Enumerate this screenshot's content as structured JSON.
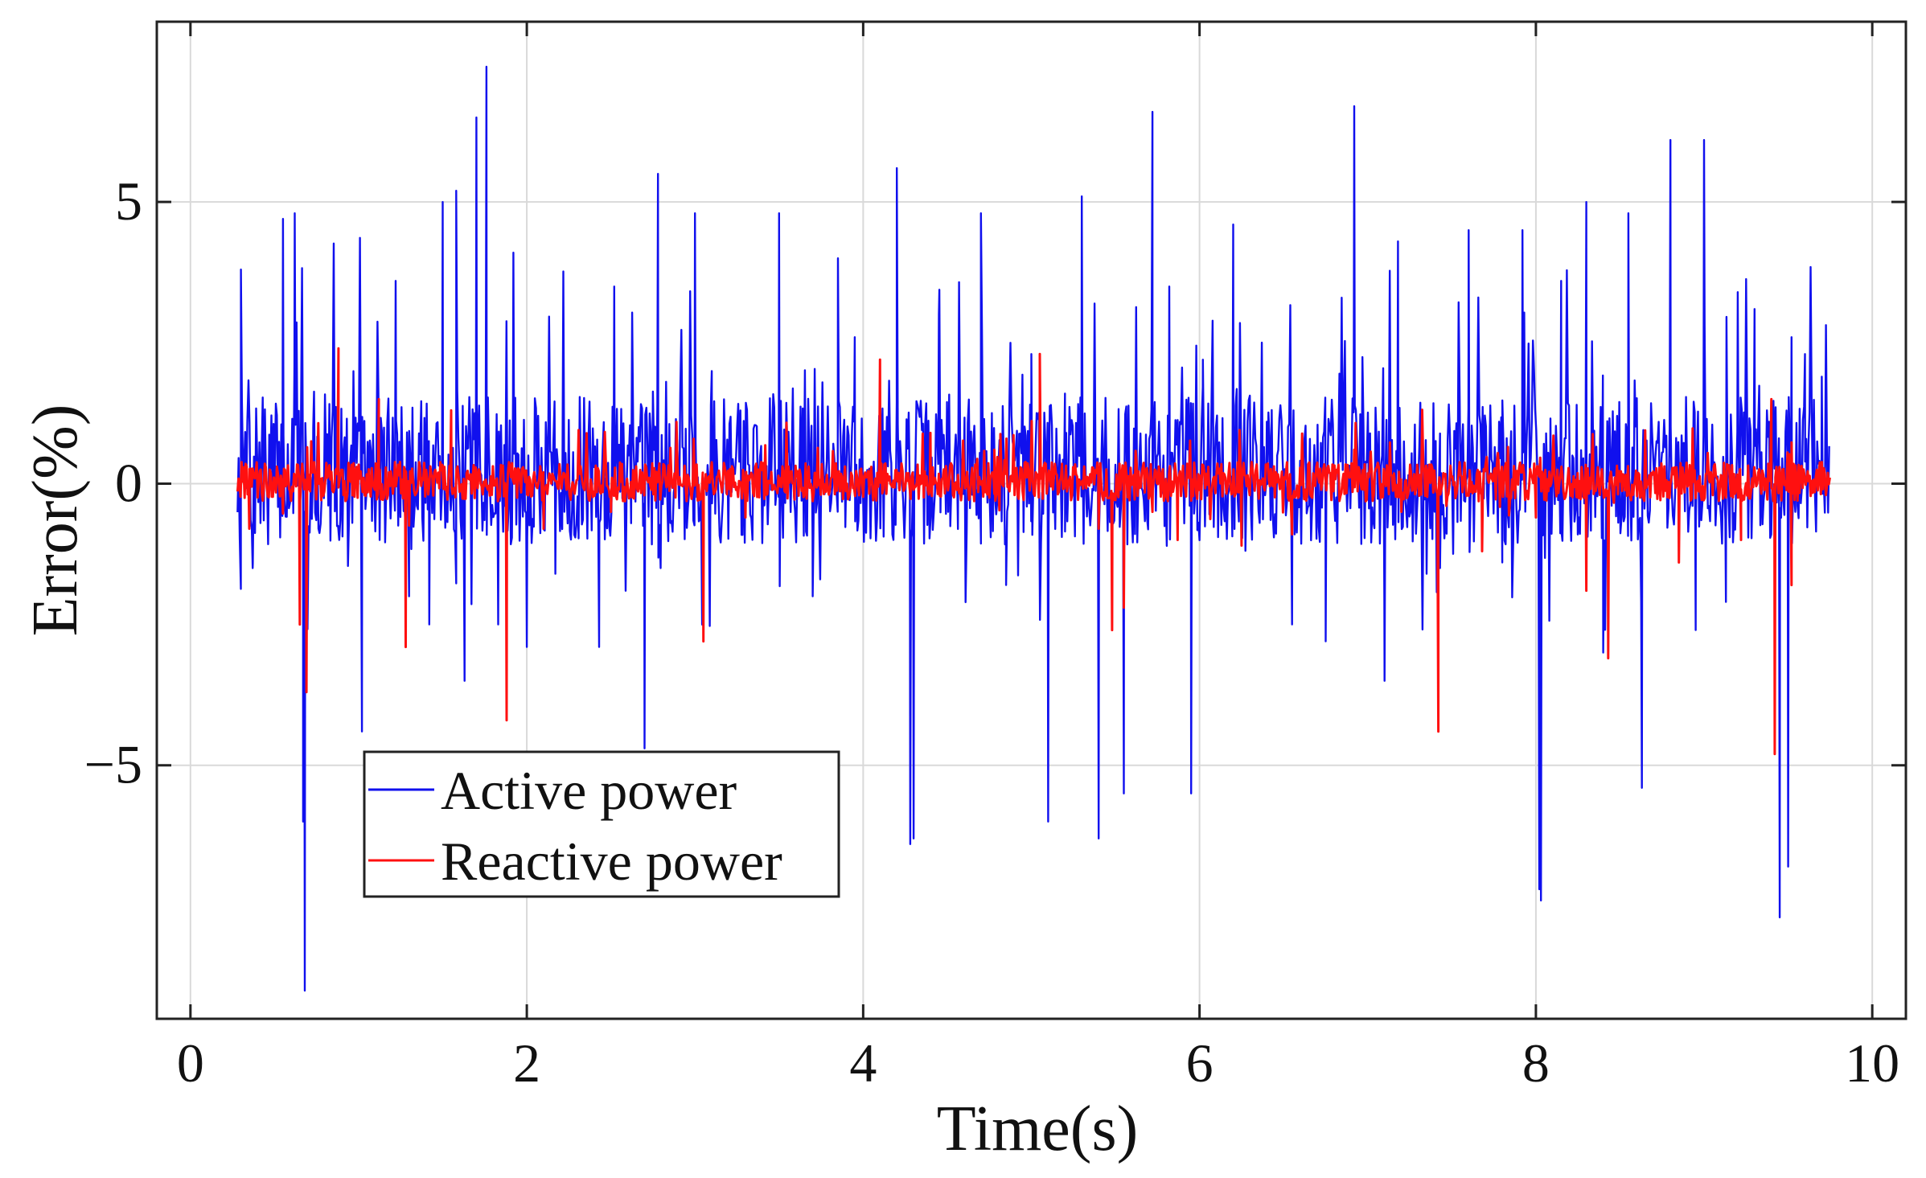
{
  "chart_data": {
    "type": "line",
    "title": "",
    "xlabel": "Time(s)",
    "ylabel": "Error(%)",
    "xlim": [
      -0.2,
      10.2
    ],
    "ylim": [
      -9.5,
      8.2
    ],
    "xticks": [
      0,
      2,
      4,
      6,
      8,
      10
    ],
    "yticks": [
      -5,
      0,
      5
    ],
    "ytick_labels": [
      "−5",
      "0",
      "5"
    ],
    "grid": true,
    "legend_position": "lower-left",
    "x_start": 0.28,
    "x_end": 9.75,
    "colors": {
      "active": "#1010ee",
      "reactive": "#ff1010",
      "grid": "#d9d9d9",
      "axis": "#222222"
    },
    "series": [
      {
        "name": "Active power",
        "color": "#1010ee",
        "description": "noisy error signal",
        "peaks": [
          [
            0.3,
            3.8
          ],
          [
            0.37,
            -1.5
          ],
          [
            0.55,
            4.7
          ],
          [
            0.62,
            4.8
          ],
          [
            0.67,
            -6.0
          ],
          [
            0.68,
            -9.0
          ],
          [
            0.73,
            1.0
          ],
          [
            1.02,
            -4.4
          ],
          [
            1.22,
            3.6
          ],
          [
            1.3,
            -2.0
          ],
          [
            1.42,
            -2.5
          ],
          [
            1.5,
            5.0
          ],
          [
            1.58,
            5.2
          ],
          [
            1.63,
            -3.5
          ],
          [
            1.7,
            6.5
          ],
          [
            1.76,
            7.4
          ],
          [
            1.83,
            -2.5
          ],
          [
            1.92,
            4.1
          ],
          [
            2.0,
            -2.9
          ],
          [
            2.17,
            -1.6
          ],
          [
            2.43,
            -2.9
          ],
          [
            2.52,
            3.5
          ],
          [
            2.7,
            -4.7
          ],
          [
            2.78,
            5.5
          ],
          [
            3.0,
            4.8
          ],
          [
            3.1,
            2.0
          ],
          [
            3.5,
            4.8
          ],
          [
            3.7,
            -2.0
          ],
          [
            3.85,
            4.0
          ],
          [
            3.95,
            2.6
          ],
          [
            4.2,
            5.6
          ],
          [
            4.28,
            -6.4
          ],
          [
            4.3,
            -6.3
          ],
          [
            4.45,
            3.0
          ],
          [
            4.7,
            4.8
          ],
          [
            4.85,
            -1.8
          ],
          [
            5.0,
            2.3
          ],
          [
            5.1,
            -6.0
          ],
          [
            5.2,
            1.6
          ],
          [
            5.3,
            5.1
          ],
          [
            5.4,
            -6.3
          ],
          [
            5.55,
            -5.5
          ],
          [
            5.72,
            6.6
          ],
          [
            5.82,
            3.5
          ],
          [
            5.95,
            -5.5
          ],
          [
            6.02,
            2.2
          ],
          [
            6.2,
            4.6
          ],
          [
            6.4,
            1.1
          ],
          [
            6.55,
            -2.5
          ],
          [
            6.75,
            -2.8
          ],
          [
            6.92,
            6.7
          ],
          [
            7.1,
            -3.5
          ],
          [
            7.18,
            4.3
          ],
          [
            7.35,
            -1.6
          ],
          [
            7.43,
            -1.5
          ],
          [
            7.6,
            4.5
          ],
          [
            7.8,
            -1.4
          ],
          [
            7.92,
            4.5
          ],
          [
            8.02,
            -7.2
          ],
          [
            8.03,
            -7.4
          ],
          [
            8.15,
            3.6
          ],
          [
            8.3,
            5.0
          ],
          [
            8.4,
            -3.0
          ],
          [
            8.55,
            4.8
          ],
          [
            8.63,
            -5.4
          ],
          [
            8.8,
            6.1
          ],
          [
            8.95,
            -2.6
          ],
          [
            9.0,
            6.1
          ],
          [
            9.13,
            -2.1
          ],
          [
            9.2,
            3.4
          ],
          [
            9.3,
            3.1
          ],
          [
            9.45,
            -7.7
          ],
          [
            9.5,
            -6.8
          ],
          [
            9.52,
            2.6
          ],
          [
            9.6,
            2.3
          ],
          [
            9.7,
            1.9
          ]
        ]
      },
      {
        "name": "Reactive power",
        "color": "#ff1010",
        "description": "smaller error signal",
        "peaks": [
          [
            0.35,
            -0.8
          ],
          [
            0.65,
            -2.5
          ],
          [
            0.69,
            -3.7
          ],
          [
            0.88,
            2.4
          ],
          [
            1.12,
            1.5
          ],
          [
            1.28,
            -2.9
          ],
          [
            1.55,
            1.3
          ],
          [
            1.88,
            -4.2
          ],
          [
            2.1,
            -0.8
          ],
          [
            2.5,
            -0.5
          ],
          [
            3.05,
            -2.8
          ],
          [
            3.3,
            -0.6
          ],
          [
            4.1,
            2.2
          ],
          [
            4.4,
            0.9
          ],
          [
            4.78,
            0.6
          ],
          [
            5.05,
            2.3
          ],
          [
            5.4,
            -0.8
          ],
          [
            5.48,
            -2.6
          ],
          [
            5.55,
            -2.2
          ],
          [
            5.72,
            -0.5
          ],
          [
            5.87,
            -1.0
          ],
          [
            6.25,
            -1.1
          ],
          [
            6.55,
            -0.9
          ],
          [
            6.92,
            0.6
          ],
          [
            7.2,
            -0.5
          ],
          [
            7.42,
            -4.4
          ],
          [
            7.68,
            -1.2
          ],
          [
            8.0,
            -0.6
          ],
          [
            8.3,
            -1.9
          ],
          [
            8.43,
            -3.1
          ],
          [
            8.85,
            -1.4
          ],
          [
            9.22,
            -1.0
          ],
          [
            9.4,
            1.5
          ],
          [
            9.42,
            -4.8
          ],
          [
            9.52,
            -1.8
          ],
          [
            9.7,
            0.2
          ]
        ]
      }
    ]
  }
}
